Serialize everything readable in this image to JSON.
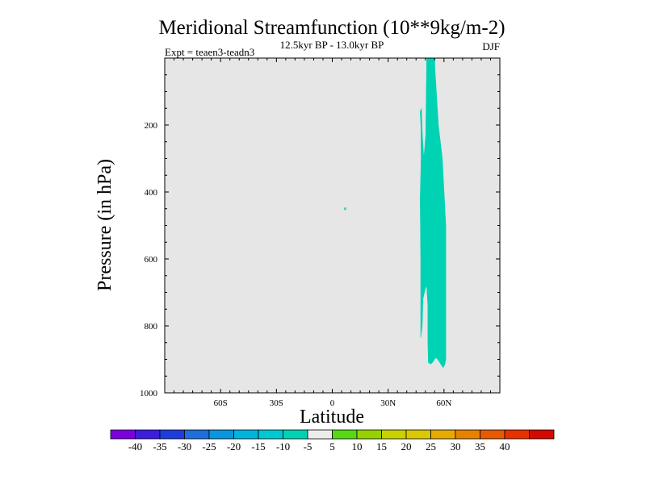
{
  "chart_data": {
    "type": "contour",
    "title": "Meridional Streamfunction (10**9kg/m-2)",
    "subtitle": "12.5kyr BP - 13.0kyr BP",
    "left_label": "Expt = teaen3-teadn3",
    "right_label": "DJF",
    "xlabel": "Latitude",
    "ylabel": "Pressure (in hPa)",
    "xlim": [
      -90,
      90
    ],
    "ylim": [
      1000,
      0
    ],
    "x_ticks": [
      {
        "value": -60,
        "label": "60S"
      },
      {
        "value": -30,
        "label": "30S"
      },
      {
        "value": 0,
        "label": "0"
      },
      {
        "value": 30,
        "label": "30N"
      },
      {
        "value": 60,
        "label": "60N"
      }
    ],
    "y_ticks": [
      {
        "value": 200,
        "label": "200"
      },
      {
        "value": 400,
        "label": "400"
      },
      {
        "value": 600,
        "label": "600"
      },
      {
        "value": 800,
        "label": "800"
      },
      {
        "value": 1000,
        "label": "1000"
      }
    ],
    "background_level_color": "#e6e6e6",
    "filled_regions": [
      {
        "name": "streamfunction-negative-cell",
        "range": "-10 to -5",
        "color": "#00d2b4",
        "polygon": [
          [
            50.7,
            0
          ],
          [
            55.1,
            0
          ],
          [
            55.1,
            25
          ],
          [
            57.0,
            200
          ],
          [
            59.1,
            300
          ],
          [
            61.0,
            500
          ],
          [
            61.0,
            700
          ],
          [
            61.0,
            900
          ],
          [
            60.5,
            914
          ],
          [
            59.6,
            925
          ],
          [
            58.2,
            914
          ],
          [
            56.7,
            900
          ],
          [
            55.4,
            895
          ],
          [
            54.3,
            906
          ],
          [
            53.0,
            914
          ],
          [
            51.6,
            910
          ],
          [
            51.3,
            850
          ],
          [
            51.3,
            740
          ],
          [
            50.7,
            680
          ],
          [
            49.9,
            690
          ],
          [
            48.7,
            720
          ],
          [
            48.3,
            800
          ],
          [
            47.5,
            835
          ],
          [
            47.5,
            600
          ],
          [
            47.2,
            420
          ],
          [
            47.7,
            300
          ],
          [
            47.6,
            200
          ],
          [
            47.2,
            160
          ],
          [
            47.9,
            150
          ],
          [
            48.5,
            240
          ],
          [
            49.2,
            300
          ],
          [
            50.2,
            230
          ],
          [
            50.5,
            100
          ]
        ]
      },
      {
        "name": "small-speck",
        "range": "-10 to -5",
        "color": "#00d2b4",
        "polygon": [
          [
            6.5,
            447
          ],
          [
            7.3,
            447
          ],
          [
            7.3,
            453
          ],
          [
            6.5,
            453
          ]
        ]
      }
    ],
    "colorbar": {
      "colors": [
        "#7b00dc",
        "#3c1edc",
        "#1e3cdc",
        "#1e6edc",
        "#0a96dc",
        "#00b4dc",
        "#00c8d2",
        "#00d2b4",
        "#ececec",
        "#56d816",
        "#96d200",
        "#c8d200",
        "#dcc800",
        "#e6aa00",
        "#e68200",
        "#e65a00",
        "#e63200",
        "#d20a00"
      ],
      "labels": [
        "-40",
        "-35",
        "-30",
        "-25",
        "-20",
        "-15",
        "-10",
        "-5",
        "5",
        "10",
        "15",
        "20",
        "25",
        "30",
        "35",
        "40"
      ]
    }
  }
}
